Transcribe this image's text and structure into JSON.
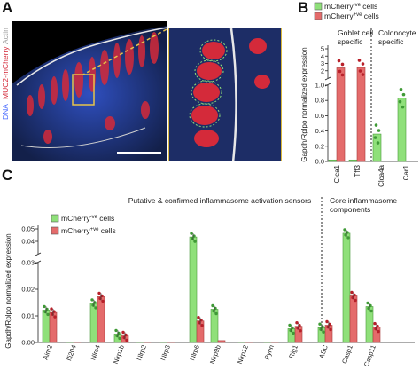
{
  "panels": {
    "a": "A",
    "b": "B",
    "c": "C"
  },
  "micrograph": {
    "labels": [
      "DNA",
      "MUC2-mCherry",
      "Actin"
    ],
    "colors": {
      "dna": "#4a6cff",
      "mcherry": "#e0283a",
      "actin": "#cfcfcf"
    }
  },
  "legend": {
    "neg": "mCherry",
    "neg_sup": "-ve",
    "neg_suffix": " cells",
    "pos": "mCherry",
    "pos_sup": "+ve",
    "pos_suffix": " cells",
    "green": "#8fe07a",
    "red": "#e46b6b"
  },
  "chart_data": [
    {
      "type": "bar",
      "panel": "B",
      "ylabel": "Gapdh/Rplpo normalized expression",
      "ylim_lower": [
        0,
        1.0
      ],
      "ylim_upper": [
        1,
        5
      ],
      "yticks_lower": [
        "0.0",
        "0.2",
        "0.4",
        "0.6",
        "0.8",
        "1.0"
      ],
      "yticks_upper": [
        "2",
        "3",
        "4",
        "5"
      ],
      "groups": [
        {
          "label": "Goblet cell specific",
          "categories": [
            "Clca1",
            "Tff3"
          ]
        },
        {
          "label": "Colonocyte specific",
          "categories": [
            "Clca4a",
            "Car1"
          ]
        }
      ],
      "categories": [
        "Clca1",
        "Tff3",
        "Clca4a",
        "Car1"
      ],
      "series": [
        {
          "name": "mCherry-ve cells",
          "values": [
            0.02,
            0.02,
            0.36,
            0.83
          ]
        },
        {
          "name": "mCherry+ve cells",
          "values": [
            2.4,
            2.45,
            0.0,
            0.0
          ]
        }
      ]
    },
    {
      "type": "bar",
      "panel": "C",
      "title": "Putative & confirmed inflammasome activation sensors",
      "title2_line1": "Core inflammasome",
      "title2_line2": "components",
      "ylabel": "Gapdh/Rplpo normalized expression",
      "ylim_lower": [
        0,
        0.03
      ],
      "ylim_upper": [
        0.03,
        0.05
      ],
      "yticks_lower": [
        "0.00",
        "0.01",
        "0.02",
        "0.03"
      ],
      "yticks_upper": [
        "0.04",
        "0.05"
      ],
      "categories": [
        "Aim2",
        "Ifi204",
        "Nlrc4",
        "Nlrp1b",
        "Nlrp2",
        "Nlrp3",
        "Nlrp6",
        "Nlrp9b",
        "Nlrp12",
        "Pyrin",
        "Rig1",
        "ASC",
        "Casp1",
        "Casp11"
      ],
      "series": [
        {
          "name": "mCherry-ve cells",
          "values": [
            0.0122,
            0.0002,
            0.0147,
            0.0032,
            0.0001,
            0.0001,
            0.0435,
            0.0125,
            0.0002,
            0.0002,
            0.0052,
            0.0056,
            0.0465,
            0.0135
          ]
        },
        {
          "name": "mCherry+ve cells",
          "values": [
            0.0113,
            0.0001,
            0.0172,
            0.0025,
            0.0001,
            0.0001,
            0.0081,
            0.0007,
            0.0001,
            0.0001,
            0.0061,
            0.0065,
            0.0175,
            0.0058
          ]
        }
      ]
    }
  ]
}
